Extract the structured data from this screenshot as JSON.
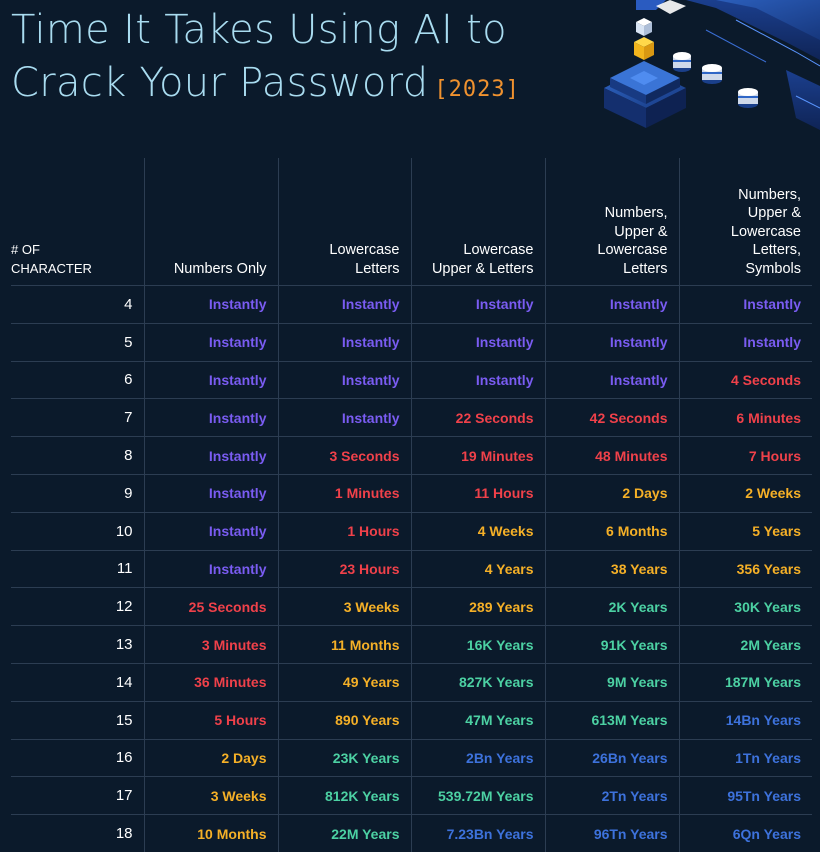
{
  "title": {
    "line1": "Time It Takes Using AI to",
    "line2": "Crack Your Password",
    "year": "[2023]"
  },
  "colors": {
    "background": "#0b1a2b",
    "title": "#a9dcf0",
    "year": "#f0922f",
    "instantly": "#7a5cf2",
    "red": "#f0414a",
    "orange": "#f5b027",
    "teal": "#4cd1a3",
    "blue": "#3d72dc"
  },
  "chart_data": {
    "type": "table",
    "columns": [
      "# OF CHARACTER",
      "Numbers Only",
      "Lowercase Letters",
      "Lowercase Upper & Letters",
      "Numbers, Upper & Lowercase Letters",
      "Numbers, Upper & Lowercase Letters, Symbols"
    ],
    "header_lines": [
      [
        "# OF",
        "CHARACTER"
      ],
      [
        "Numbers Only"
      ],
      [
        "Lowercase",
        "Letters"
      ],
      [
        "Lowercase",
        "Upper & Letters"
      ],
      [
        "Numbers,",
        "Upper &",
        "Lowercase",
        "Letters"
      ],
      [
        "Numbers,",
        "Upper &",
        "Lowercase",
        "Letters,",
        "Symbols"
      ]
    ],
    "rows": [
      {
        "chars": "4",
        "values": [
          "Instantly",
          "Instantly",
          "Instantly",
          "Instantly",
          "Instantly"
        ],
        "levels": [
          "instant",
          "instant",
          "instant",
          "instant",
          "instant"
        ]
      },
      {
        "chars": "5",
        "values": [
          "Instantly",
          "Instantly",
          "Instantly",
          "Instantly",
          "Instantly"
        ],
        "levels": [
          "instant",
          "instant",
          "instant",
          "instant",
          "instant"
        ]
      },
      {
        "chars": "6",
        "values": [
          "Instantly",
          "Instantly",
          "Instantly",
          "Instantly",
          "4 Seconds"
        ],
        "levels": [
          "instant",
          "instant",
          "instant",
          "instant",
          "red"
        ]
      },
      {
        "chars": "7",
        "values": [
          "Instantly",
          "Instantly",
          "22 Seconds",
          "42 Seconds",
          "6 Minutes"
        ],
        "levels": [
          "instant",
          "instant",
          "red",
          "red",
          "red"
        ]
      },
      {
        "chars": "8",
        "values": [
          "Instantly",
          "3 Seconds",
          "19 Minutes",
          "48 Minutes",
          "7 Hours"
        ],
        "levels": [
          "instant",
          "red",
          "red",
          "red",
          "red"
        ]
      },
      {
        "chars": "9",
        "values": [
          "Instantly",
          "1 Minutes",
          "11 Hours",
          "2 Days",
          "2 Weeks"
        ],
        "levels": [
          "instant",
          "red",
          "red",
          "orange",
          "orange"
        ]
      },
      {
        "chars": "10",
        "values": [
          "Instantly",
          "1 Hours",
          "4 Weeks",
          "6 Months",
          "5 Years"
        ],
        "levels": [
          "instant",
          "red",
          "orange",
          "orange",
          "orange"
        ]
      },
      {
        "chars": "11",
        "values": [
          "Instantly",
          "23 Hours",
          "4 Years",
          "38 Years",
          "356 Years"
        ],
        "levels": [
          "instant",
          "red",
          "orange",
          "orange",
          "orange"
        ]
      },
      {
        "chars": "12",
        "values": [
          "25 Seconds",
          "3 Weeks",
          "289 Years",
          "2K Years",
          "30K Years"
        ],
        "levels": [
          "red",
          "orange",
          "orange",
          "teal",
          "teal"
        ]
      },
      {
        "chars": "13",
        "values": [
          "3 Minutes",
          "11 Months",
          "16K Years",
          "91K Years",
          "2M Years"
        ],
        "levels": [
          "red",
          "orange",
          "teal",
          "teal",
          "teal"
        ]
      },
      {
        "chars": "14",
        "values": [
          "36 Minutes",
          "49 Years",
          "827K Years",
          "9M Years",
          "187M Years"
        ],
        "levels": [
          "red",
          "orange",
          "teal",
          "teal",
          "teal"
        ]
      },
      {
        "chars": "15",
        "values": [
          "5 Hours",
          "890 Years",
          "47M Years",
          "613M Years",
          "14Bn Years"
        ],
        "levels": [
          "red",
          "orange",
          "teal",
          "teal",
          "blue"
        ]
      },
      {
        "chars": "16",
        "values": [
          "2 Days",
          "23K Years",
          "2Bn Years",
          "26Bn Years",
          "1Tn Years"
        ],
        "levels": [
          "orange",
          "teal",
          "blue",
          "blue",
          "blue"
        ]
      },
      {
        "chars": "17",
        "values": [
          "3 Weeks",
          "812K Years",
          "539.72M Years",
          "2Tn Years",
          "95Tn Years"
        ],
        "levels": [
          "orange",
          "teal",
          "teal",
          "blue",
          "blue"
        ]
      },
      {
        "chars": "18",
        "values": [
          "10 Months",
          "22M Years",
          "7.23Bn Years",
          "96Tn Years",
          "6Qn Years"
        ],
        "levels": [
          "orange",
          "teal",
          "blue",
          "blue",
          "blue"
        ]
      }
    ]
  }
}
